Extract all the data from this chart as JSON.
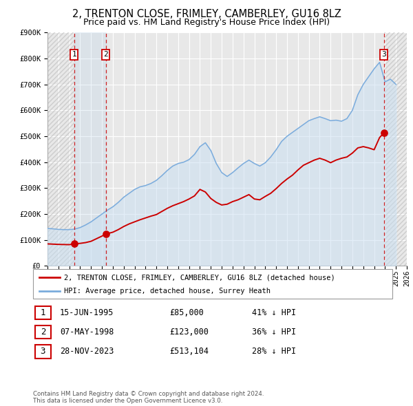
{
  "title": "2, TRENTON CLOSE, FRIMLEY, CAMBERLEY, GU16 8LZ",
  "subtitle": "Price paid vs. HM Land Registry's House Price Index (HPI)",
  "ylim": [
    0,
    900000
  ],
  "xlim_start": 1993,
  "xlim_end": 2026,
  "ytick_labels": [
    "£0",
    "£100K",
    "£200K",
    "£300K",
    "£400K",
    "£500K",
    "£600K",
    "£700K",
    "£800K",
    "£900K"
  ],
  "ytick_values": [
    0,
    100000,
    200000,
    300000,
    400000,
    500000,
    600000,
    700000,
    800000,
    900000
  ],
  "xtick_years": [
    1993,
    1994,
    1995,
    1996,
    1997,
    1998,
    1999,
    2000,
    2001,
    2002,
    2003,
    2004,
    2005,
    2006,
    2007,
    2008,
    2009,
    2010,
    2011,
    2012,
    2013,
    2014,
    2015,
    2016,
    2017,
    2018,
    2019,
    2020,
    2021,
    2022,
    2023,
    2024,
    2025,
    2026
  ],
  "sale_color": "#cc0000",
  "hpi_color": "#7aabdc",
  "hpi_fill_color": "#c8dff2",
  "background_color": "#ffffff",
  "plot_bg_color": "#e8e8e8",
  "grid_color": "#ffffff",
  "sale_label": "2, TRENTON CLOSE, FRIMLEY, CAMBERLEY, GU16 8LZ (detached house)",
  "hpi_label": "HPI: Average price, detached house, Surrey Heath",
  "transactions": [
    {
      "num": 1,
      "date": "15-JUN-1995",
      "price": 85000,
      "pct": "41%",
      "year": 1995.45
    },
    {
      "num": 2,
      "date": "07-MAY-1998",
      "price": 123000,
      "pct": "36%",
      "year": 1998.35
    },
    {
      "num": 3,
      "date": "28-NOV-2023",
      "price": 513104,
      "pct": "28%",
      "year": 2023.9
    }
  ],
  "sale_line_x": [
    1993.0,
    1993.5,
    1994.0,
    1994.5,
    1995.0,
    1995.45,
    1996.0,
    1996.5,
    1997.0,
    1997.5,
    1998.0,
    1998.35,
    1999.0,
    1999.5,
    2000.0,
    2000.5,
    2001.0,
    2001.5,
    2002.0,
    2002.5,
    2003.0,
    2003.5,
    2004.0,
    2004.5,
    2005.0,
    2005.5,
    2006.0,
    2006.5,
    2007.0,
    2007.5,
    2008.0,
    2008.5,
    2009.0,
    2009.5,
    2010.0,
    2010.5,
    2011.0,
    2011.5,
    2012.0,
    2012.5,
    2013.0,
    2013.5,
    2014.0,
    2014.5,
    2015.0,
    2015.5,
    2016.0,
    2016.5,
    2017.0,
    2017.5,
    2018.0,
    2018.5,
    2019.0,
    2019.5,
    2020.0,
    2020.5,
    2021.0,
    2021.5,
    2022.0,
    2022.5,
    2023.0,
    2023.5,
    2023.9
  ],
  "sale_line_y": [
    85000,
    84000,
    83000,
    82500,
    82000,
    85000,
    87000,
    90000,
    95000,
    105000,
    115000,
    123000,
    130000,
    140000,
    152000,
    162000,
    170000,
    178000,
    185000,
    192000,
    198000,
    210000,
    222000,
    232000,
    240000,
    248000,
    258000,
    270000,
    295000,
    285000,
    260000,
    245000,
    235000,
    238000,
    248000,
    255000,
    265000,
    275000,
    258000,
    255000,
    268000,
    280000,
    298000,
    318000,
    335000,
    350000,
    370000,
    388000,
    398000,
    408000,
    415000,
    408000,
    398000,
    408000,
    415000,
    420000,
    435000,
    455000,
    460000,
    455000,
    448000,
    495000,
    513104
  ],
  "hpi_line_x": [
    1993.0,
    1993.5,
    1994.0,
    1994.5,
    1995.0,
    1995.5,
    1996.0,
    1996.5,
    1997.0,
    1997.5,
    1998.0,
    1998.5,
    1999.0,
    1999.5,
    2000.0,
    2000.5,
    2001.0,
    2001.5,
    2002.0,
    2002.5,
    2003.0,
    2003.5,
    2004.0,
    2004.5,
    2005.0,
    2005.5,
    2006.0,
    2006.5,
    2007.0,
    2007.5,
    2008.0,
    2008.5,
    2009.0,
    2009.5,
    2010.0,
    2010.5,
    2011.0,
    2011.5,
    2012.0,
    2012.5,
    2013.0,
    2013.5,
    2014.0,
    2014.5,
    2015.0,
    2015.5,
    2016.0,
    2016.5,
    2017.0,
    2017.5,
    2018.0,
    2018.5,
    2019.0,
    2019.5,
    2020.0,
    2020.5,
    2021.0,
    2021.5,
    2022.0,
    2022.5,
    2023.0,
    2023.5,
    2024.0,
    2024.5,
    2025.0
  ],
  "hpi_line_y": [
    145000,
    143000,
    141000,
    140000,
    140000,
    142000,
    148000,
    158000,
    170000,
    185000,
    200000,
    215000,
    228000,
    245000,
    265000,
    280000,
    295000,
    305000,
    310000,
    318000,
    330000,
    348000,
    368000,
    385000,
    395000,
    400000,
    410000,
    430000,
    460000,
    475000,
    445000,
    395000,
    360000,
    345000,
    360000,
    378000,
    395000,
    408000,
    395000,
    385000,
    398000,
    420000,
    448000,
    480000,
    500000,
    515000,
    530000,
    545000,
    560000,
    568000,
    575000,
    568000,
    560000,
    562000,
    558000,
    568000,
    600000,
    660000,
    700000,
    730000,
    760000,
    785000,
    710000,
    720000,
    700000
  ],
  "vline1_x": 1995.45,
  "vline2_x": 1998.35,
  "vline3_x": 2023.9,
  "hatch_before_x": 1995.45,
  "shade_between_start": 1995.45,
  "shade_between_end": 1998.35,
  "hatch_after_x": 2023.9,
  "footer_text": "Contains HM Land Registry data © Crown copyright and database right 2024.\nThis data is licensed under the Open Government Licence v3.0."
}
